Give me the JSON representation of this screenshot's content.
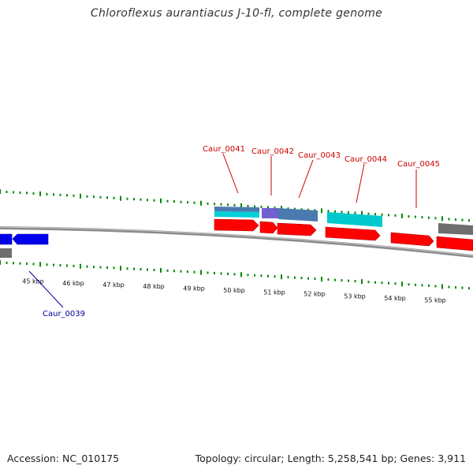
{
  "title": "Chloroflexus aurantiacus J-10-fl, complete genome",
  "accession": "Accession: NC_010175",
  "summary": "Topology: circular; Length: 5,258,541 bp; Genes: 3,911",
  "colors": {
    "forward_cds": "#ff0000",
    "reverse_cds": "#0000ee",
    "gray_feature": "#777777",
    "cyan_feature": "#00cccc",
    "steel_feature": "#4a7ab0",
    "purple_feature": "#7060d0",
    "gc_ticks": "#008800",
    "backbone": "#888888",
    "red_label": "#cc0000",
    "blue_label": "#000099"
  },
  "scale_labels": [
    "45 kbp",
    "46 kbp",
    "47 kbp",
    "48 kbp",
    "49 kbp",
    "50 kbp",
    "51 kbp",
    "52 kbp",
    "53 kbp",
    "54 kbp",
    "55 kbp"
  ],
  "gene_labels": [
    {
      "name": "Caur_0041",
      "strand": "forward"
    },
    {
      "name": "Caur_0042",
      "strand": "forward"
    },
    {
      "name": "Caur_0043",
      "strand": "forward"
    },
    {
      "name": "Caur_0044",
      "strand": "forward"
    },
    {
      "name": "Caur_0045",
      "strand": "forward"
    },
    {
      "name": "Caur_0039",
      "strand": "reverse"
    }
  ]
}
